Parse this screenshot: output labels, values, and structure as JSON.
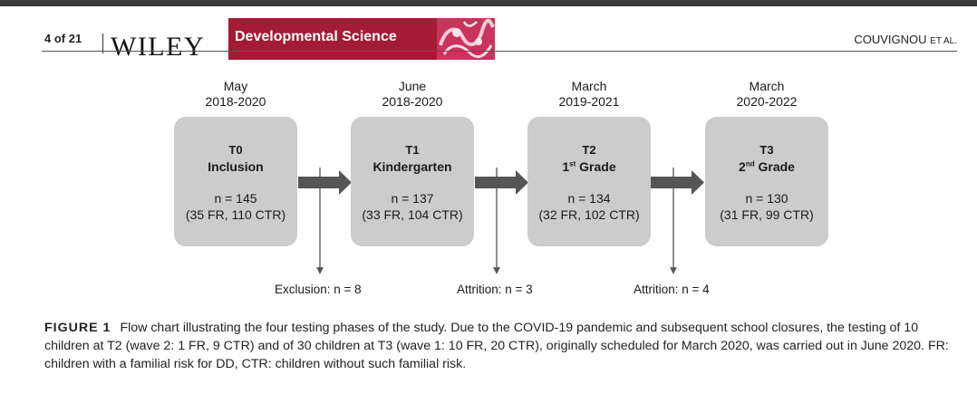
{
  "header": {
    "page_number": "4 of 21",
    "publisher": "WILEY",
    "journal": "Developmental Science",
    "author": "COUVIGNOU",
    "author_suffix": "ET AL."
  },
  "colors": {
    "journal_banner": "#a31b34",
    "box_fill": "#cccccc",
    "arrow": "#555555"
  },
  "flowchart": {
    "phases": [
      {
        "month": "May",
        "years": "2018-2020",
        "id": "T0",
        "label": "Inclusion",
        "label_sup": "",
        "label_rest": "",
        "n": "n = 145",
        "split": "(35 FR, 110 CTR)"
      },
      {
        "month": "June",
        "years": "2018-2020",
        "id": "T1",
        "label": "Kindergarten",
        "label_sup": "",
        "label_rest": "",
        "n": "n = 137",
        "split": "(33 FR, 104 CTR)"
      },
      {
        "month": "March",
        "years": "2019-2021",
        "id": "T2",
        "label": "1",
        "label_sup": "st",
        "label_rest": " Grade",
        "n": "n = 134",
        "split": "(32 FR, 102 CTR)"
      },
      {
        "month": "March",
        "years": "2020-2022",
        "id": "T3",
        "label": "2",
        "label_sup": "nd",
        "label_rest": " Grade",
        "n": "n = 130",
        "split": "(31 FR, 99 CTR)"
      }
    ],
    "outcomes": [
      {
        "text": "Exclusion: n = 8"
      },
      {
        "text": "Attrition: n = 3"
      },
      {
        "text": "Attrition: n = 4"
      }
    ]
  },
  "caption": {
    "label": "FIGURE 1",
    "text": "Flow chart illustrating the four testing phases of the study. Due to the COVID-19 pandemic and subsequent school closures, the testing of 10 children at T2 (wave 2: 1 FR, 9 CTR) and of 30 children at T3 (wave 1: 10 FR, 20 CTR), originally scheduled for March 2020, was carried out in June 2020. FR: children with a familial risk for DD, CTR: children without such familial risk."
  }
}
